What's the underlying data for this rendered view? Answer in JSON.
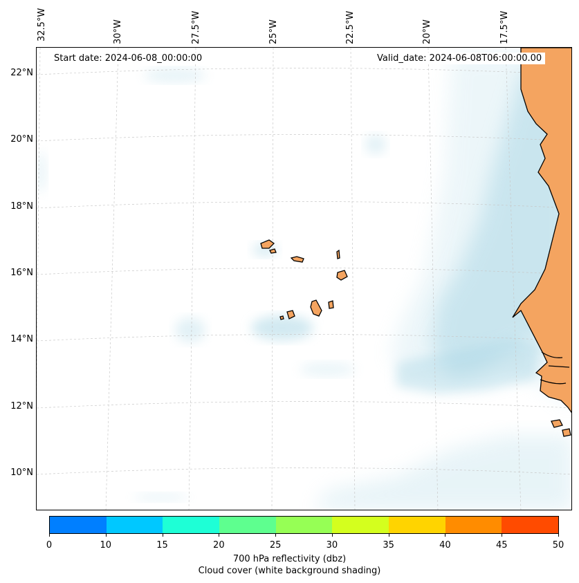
{
  "map": {
    "start_date_label": "Start date: 2024-06-08_00:00:00",
    "valid_date_label": "Valid_date: 2024-06-08T06:00:00.00",
    "lon_labels": [
      "32.5°W",
      "30°W",
      "27.5°W",
      "25°W",
      "22.5°W",
      "20°W",
      "17.5°W"
    ],
    "lat_labels": [
      "22°N",
      "20°N",
      "18°N",
      "16°N",
      "14°N",
      "12°N",
      "10°N"
    ],
    "colors": {
      "land": "#f4a460",
      "cloud": "#add8e6",
      "coastline": "#000000",
      "gridline": "#c8c8c8"
    }
  },
  "colorbar": {
    "tick_labels": [
      "0",
      "10",
      "15",
      "20",
      "25",
      "30",
      "35",
      "40",
      "45",
      "50"
    ],
    "colors": [
      "#007fff",
      "#00c8ff",
      "#1effd6",
      "#5eff8f",
      "#96ff55",
      "#d4ff1e",
      "#ffd400",
      "#ff8c00",
      "#ff4b00"
    ],
    "label": "700 hPa reflectivity (dbz)",
    "sublabel": "Cloud cover (white background shading)"
  }
}
